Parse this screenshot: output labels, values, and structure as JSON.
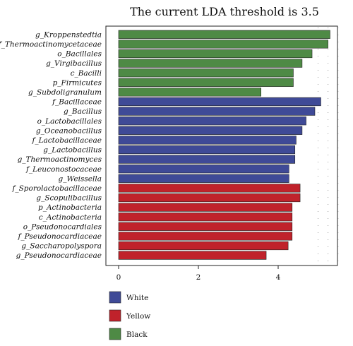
{
  "chart_data": {
    "type": "bar",
    "orientation": "horizontal",
    "title": "The current LDA threshold is 3.5",
    "xlabel": "",
    "ylabel": "",
    "xlim": [
      0,
      5.5
    ],
    "xticks": [
      0,
      2,
      4
    ],
    "grid": false,
    "legend_position": "bottom-left",
    "categories": [
      "g_Kroppenstedtia",
      "f_Thermoactinomycetaceae",
      "o_Bacillales",
      "g_Virgibacillus",
      "c_Bacilli",
      "p_Firmicutes",
      "g_Subdoligranulum",
      "f_Bacillaceae",
      "g_Bacillus",
      "o_Lactobacillales",
      "g_Oceanobacillus",
      "f_Lactobacillaceae",
      "g_Lactobacillus",
      "g_Thermoactinomyces",
      "f_Leuconostocaceae",
      "g_Weissella",
      "f_Sporolactobacillaceae",
      "g_Scopulibacillus",
      "p_Actinobacteria",
      "c_Actinobacteria",
      "o_Pseudonocardiales",
      "f_Pseudonocardiaceae",
      "g_Saccharopolyspora",
      "g_Pseudonocardiaceae"
    ],
    "values": [
      5.3,
      5.25,
      4.85,
      4.6,
      4.38,
      4.38,
      3.57,
      5.07,
      4.92,
      4.7,
      4.6,
      4.45,
      4.42,
      4.42,
      4.27,
      4.27,
      4.55,
      4.55,
      4.35,
      4.35,
      4.35,
      4.35,
      4.25,
      3.7
    ],
    "groups": [
      "Black",
      "Black",
      "Black",
      "Black",
      "Black",
      "Black",
      "Black",
      "White",
      "White",
      "White",
      "White",
      "White",
      "White",
      "White",
      "White",
      "White",
      "Yellow",
      "Yellow",
      "Yellow",
      "Yellow",
      "Yellow",
      "Yellow",
      "Yellow",
      "Yellow"
    ],
    "series": [
      {
        "name": "White",
        "color": "#3f4a97"
      },
      {
        "name": "Yellow",
        "color": "#c0222b"
      },
      {
        "name": "Black",
        "color": "#4e8a45"
      }
    ]
  }
}
